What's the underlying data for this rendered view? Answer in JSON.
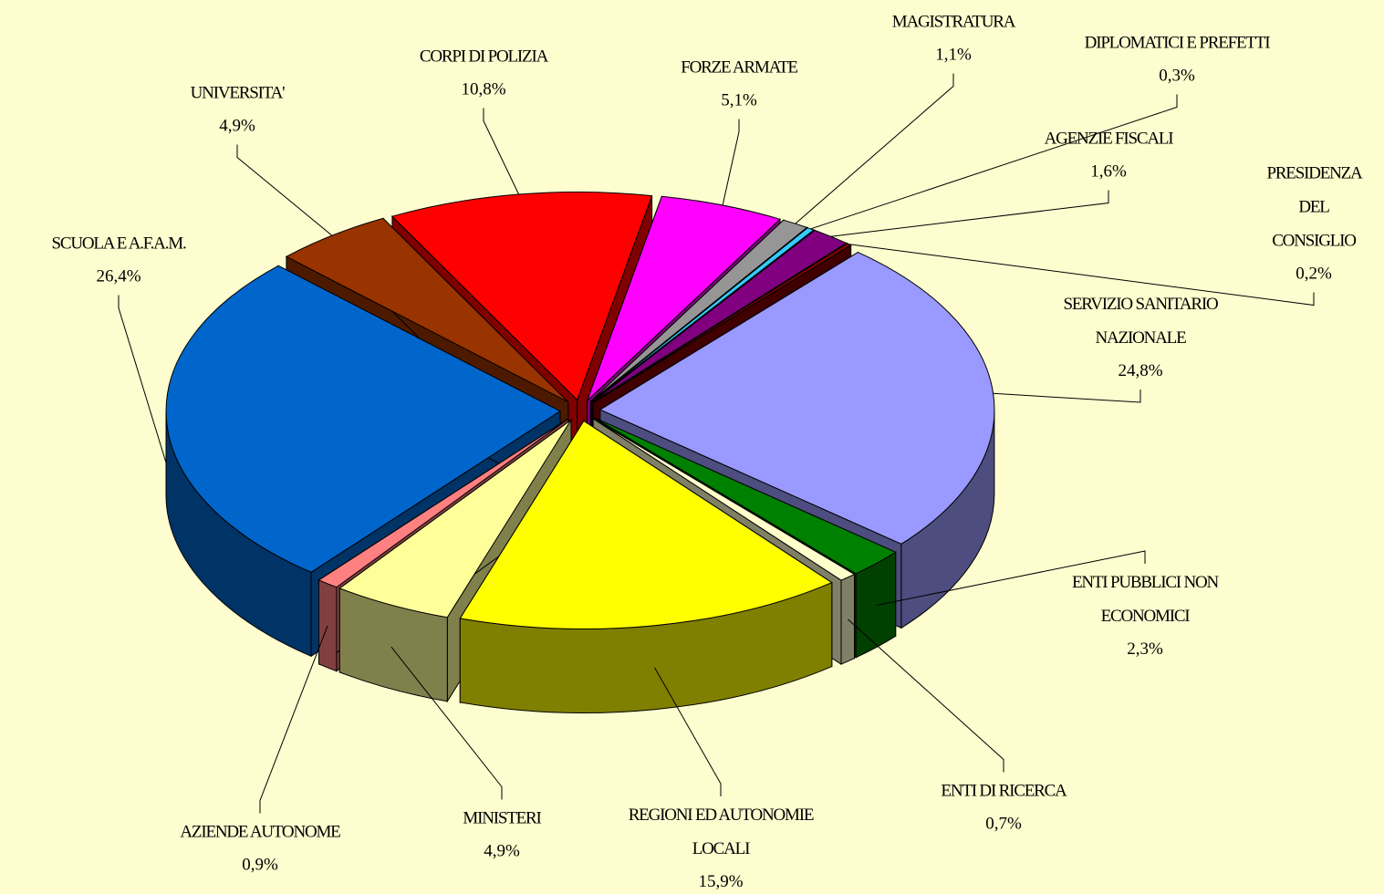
{
  "chart_data": {
    "type": "pie",
    "categories": [
      "CORPI DI POLIZIA",
      "FORZE ARMATE",
      "MAGISTRATURA",
      "DIPLOMATICI E PREFETTI",
      "AGENZIE FISCALI",
      "PRESIDENZA DEL\nCONSIGLIO",
      "SERVIZIO SANITARIO\nNAZIONALE",
      "ENTI PUBBLICI NON\nECONOMICI",
      "ENTI DI RICERCA",
      "REGIONI ED AUTONOMIE\nLOCALI",
      "MINISTERI",
      "AZIENDE AUTONOME",
      "SCUOLA E A.F.A.M.",
      "UNIVERSITA'"
    ],
    "values": [
      10.8,
      5.1,
      1.1,
      0.3,
      1.6,
      0.2,
      24.8,
      2.3,
      0.7,
      15.9,
      4.9,
      0.9,
      26.4,
      4.9
    ],
    "value_labels": [
      "10,8%",
      "5,1%",
      "1,1%",
      "0,3%",
      "1,6%",
      "0,2%",
      "24,8%",
      "2,3%",
      "0,7%",
      "15,9%",
      "4,9%",
      "0,9%",
      "26,4%",
      "4,9%"
    ],
    "colors": [
      "#ff0000",
      "#ff00ff",
      "#969696",
      "#33ccff",
      "#800080",
      "#800000",
      "#9999ff",
      "#008000",
      "#ffffcc",
      "#ffff00",
      "#ffff99",
      "#ff8080",
      "#0066cc",
      "#993300"
    ]
  }
}
